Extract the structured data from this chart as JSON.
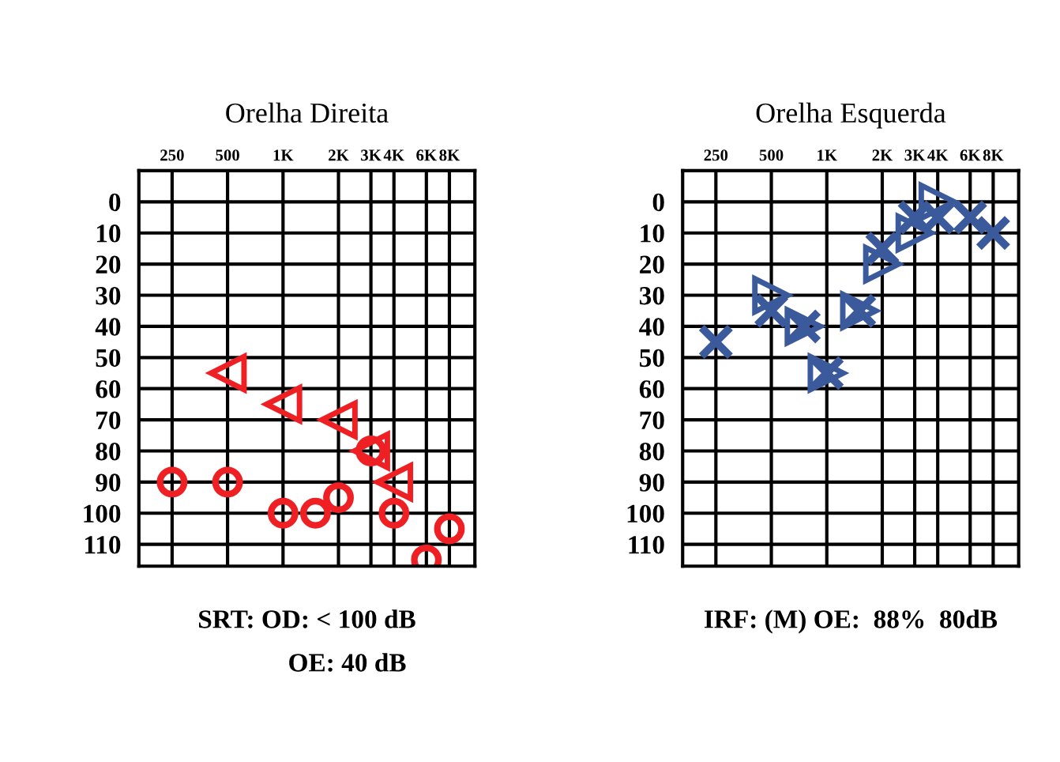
{
  "chart_data": [
    {
      "type": "scatter",
      "title": "Orelha Direita",
      "annotations": [
        "SRT: OD: < 100 dB",
        "OE: 40 dB"
      ],
      "log": "x",
      "xlim": [
        165,
        11000
      ],
      "ylim": [
        117,
        -10
      ],
      "xticks": [
        250,
        500,
        {
          "value": 1000,
          "label": "1K"
        },
        {
          "value": 2000,
          "label": "2K"
        },
        {
          "value": 3000,
          "label": "3K"
        },
        {
          "value": 4000,
          "label": "4K"
        },
        {
          "value": 6000,
          "label": "6K"
        },
        {
          "value": 8000,
          "label": "8K"
        }
      ],
      "yticks": [
        0,
        10,
        20,
        30,
        40,
        50,
        60,
        70,
        80,
        90,
        100,
        110
      ],
      "grid": true,
      "series": [
        {
          "color": "#ee2024",
          "marker": "circle",
          "x": [
            250,
            500,
            1000,
            1500,
            2000,
            3000,
            4000,
            6000,
            8000
          ],
          "values": [
            90,
            90,
            100,
            100,
            95,
            80,
            100,
            115,
            105
          ]
        },
        {
          "color": "#ee2024",
          "marker": "triangle",
          "x": [
            500,
            1000,
            2000,
            3000,
            4000
          ],
          "values": [
            55,
            65,
            70,
            80,
            90
          ]
        }
      ]
    },
    {
      "type": "scatter",
      "title": "Orelha Esquerda",
      "annotations": [
        "IRF: (M) OE:  88%  80dB"
      ],
      "log": "x",
      "xlim": [
        165,
        11000
      ],
      "ylim": [
        117,
        -10
      ],
      "xticks": [
        250,
        500,
        {
          "value": 1000,
          "label": "1K"
        },
        {
          "value": 2000,
          "label": "2K"
        },
        {
          "value": 3000,
          "label": "3K"
        },
        {
          "value": 4000,
          "label": "4K"
        },
        {
          "value": 6000,
          "label": "6K"
        },
        {
          "value": 8000,
          "label": "8K"
        }
      ],
      "yticks": [
        0,
        10,
        20,
        30,
        40,
        50,
        60,
        70,
        80,
        90,
        100,
        110
      ],
      "grid": true,
      "series": [
        {
          "color": "#3a5a9c",
          "marker": "cross",
          "x": [
            250,
            500,
            750,
            1000,
            1500,
            2000,
            3000,
            4000,
            6000,
            8000
          ],
          "values": [
            45,
            35,
            40,
            55,
            35,
            15,
            5,
            5,
            5,
            10
          ]
        },
        {
          "color": "#3a5a9c",
          "marker": "triangle",
          "x": [
            500,
            750,
            1000,
            1500,
            2000,
            3000,
            4000
          ],
          "values": [
            30,
            40,
            55,
            35,
            20,
            10,
            0
          ]
        }
      ]
    }
  ]
}
